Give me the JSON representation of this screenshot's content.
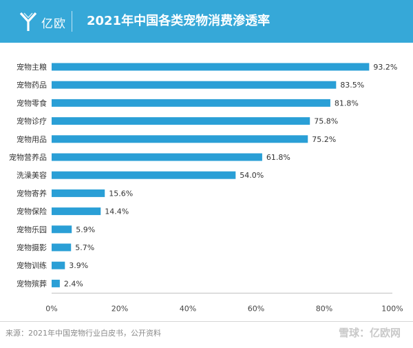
{
  "header": {
    "logo_text": "亿欧",
    "logo_icon": "yiou-y-logo-icon",
    "title": "2021年中国各类宠物消费渗透率",
    "background_color": "#36a8d8"
  },
  "chart_data": {
    "type": "bar",
    "orientation": "horizontal",
    "categories": [
      "宠物主粮",
      "宠物药品",
      "宠物零食",
      "宠物诊疗",
      "宠物用品",
      "宠物营养品",
      "洗澡美容",
      "宠物寄养",
      "宠物保险",
      "宠物乐园",
      "宠物摄影",
      "宠物训练",
      "宠物殡葬"
    ],
    "values": [
      93.2,
      83.5,
      81.8,
      75.8,
      75.2,
      61.8,
      54.0,
      15.6,
      14.4,
      5.9,
      5.7,
      3.9,
      2.4
    ],
    "value_labels": [
      "93.2%",
      "83.5%",
      "81.8%",
      "75.8%",
      "75.2%",
      "61.8%",
      "54.0%",
      "15.6%",
      "14.4%",
      "5.9%",
      "5.7%",
      "3.9%",
      "2.4%"
    ],
    "x_ticks": [
      "0%",
      "20%",
      "40%",
      "60%",
      "80%",
      "100%"
    ],
    "xlim": [
      0,
      100
    ],
    "bar_color": "#2a9fd6",
    "grid": false
  },
  "footer": {
    "source": "来源：2021年中国宠物行业白皮书，公开资料",
    "watermark": "雪球：亿欧网"
  }
}
